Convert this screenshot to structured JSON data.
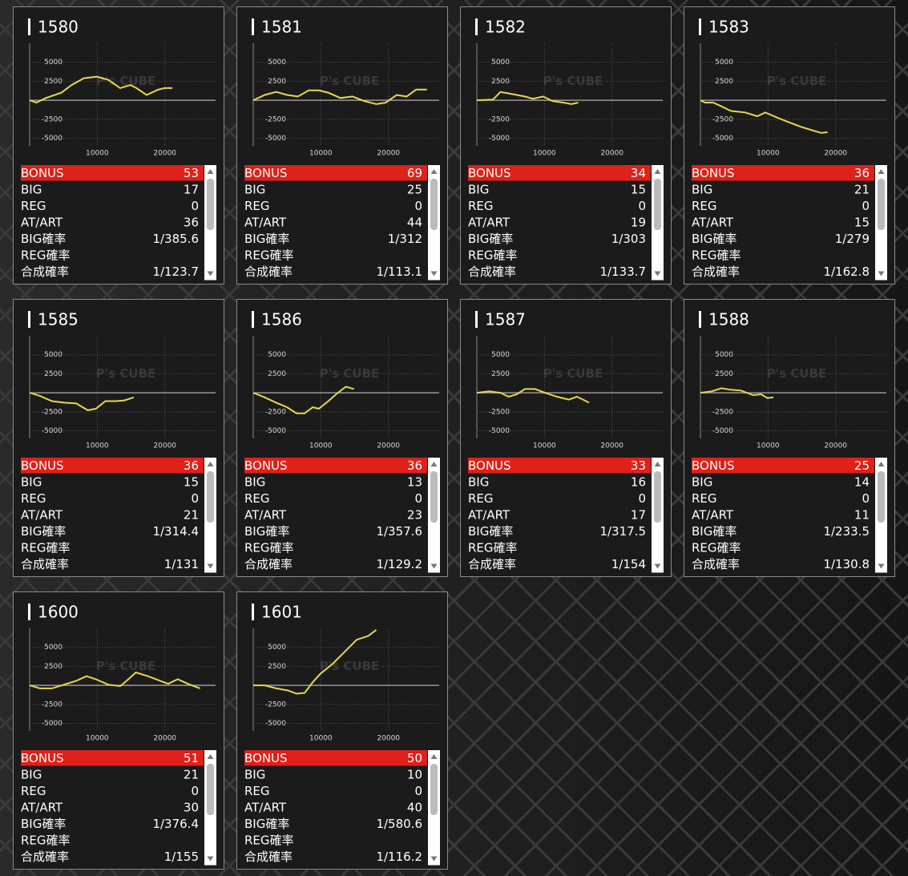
{
  "axes": {
    "xlim": [
      0,
      27500
    ],
    "ylim": [
      -6000,
      7500
    ],
    "xticks": [
      10000,
      20000
    ],
    "yticks": [
      5000,
      2500,
      -2500,
      -5000
    ],
    "grid": true,
    "line_color": "#e8d84a"
  },
  "watermark": "P's CUBE",
  "cards": [
    {
      "title": "1580",
      "chart": {
        "type": "line",
        "x": [
          0,
          1000,
          2400,
          4700,
          6200,
          8000,
          9900,
          11600,
          13400,
          14900,
          15800,
          17300,
          19000,
          20000,
          21100
        ],
        "values": [
          0,
          -300,
          300,
          1000,
          2000,
          2900,
          3100,
          2700,
          1600,
          2000,
          1600,
          700,
          1400,
          1600,
          1600
        ]
      },
      "rows": [
        {
          "label": "BONUS",
          "value": 53
        },
        {
          "label": "BIG",
          "value": 17
        },
        {
          "label": "REG",
          "value": 0
        },
        {
          "label": "AT/ART",
          "value": 36
        },
        {
          "label": "BIG確率",
          "value": "1/385.6"
        },
        {
          "label": "REG確率"
        },
        {
          "label": "合成確率",
          "value": "1/123.7"
        }
      ]
    },
    {
      "title": "1581",
      "chart": {
        "type": "line",
        "x": [
          0,
          1700,
          3400,
          5000,
          6600,
          8200,
          9700,
          11100,
          12900,
          14700,
          16400,
          18200,
          19600,
          21200,
          22700,
          24100,
          25700
        ],
        "values": [
          0,
          700,
          1100,
          700,
          500,
          1300,
          1300,
          1000,
          300,
          500,
          -100,
          -500,
          -300,
          700,
          500,
          1400,
          1400
        ]
      },
      "rows": [
        {
          "label": "BONUS",
          "value": 69
        },
        {
          "label": "BIG",
          "value": 25
        },
        {
          "label": "REG",
          "value": 0
        },
        {
          "label": "AT/ART",
          "value": 44
        },
        {
          "label": "BIG確率",
          "value": "1/312"
        },
        {
          "label": "REG確率"
        },
        {
          "label": "合成確率",
          "value": "1/113.1"
        }
      ]
    },
    {
      "title": "1582",
      "chart": {
        "type": "line",
        "x": [
          0,
          2400,
          3500,
          5300,
          7100,
          8300,
          9800,
          11200,
          12800,
          14000,
          15000
        ],
        "values": [
          0,
          100,
          1100,
          800,
          500,
          200,
          500,
          -100,
          -300,
          -500,
          -300
        ]
      },
      "rows": [
        {
          "label": "BONUS",
          "value": 34
        },
        {
          "label": "BIG",
          "value": 15
        },
        {
          "label": "REG",
          "value": 0
        },
        {
          "label": "AT/ART",
          "value": 19
        },
        {
          "label": "BIG確率",
          "value": "1/303"
        },
        {
          "label": "REG確率"
        },
        {
          "label": "合成確率",
          "value": "1/133.7"
        }
      ]
    },
    {
      "title": "1583",
      "chart": {
        "type": "line",
        "x": [
          0,
          700,
          1900,
          3100,
          4500,
          6600,
          8400,
          9600,
          11400,
          13100,
          14900,
          16700,
          17900,
          18800
        ],
        "values": [
          0,
          -300,
          -300,
          -800,
          -1400,
          -1600,
          -2100,
          -1600,
          -2300,
          -2900,
          -3500,
          -4000,
          -4300,
          -4200
        ]
      },
      "rows": [
        {
          "label": "BONUS",
          "value": 36
        },
        {
          "label": "BIG",
          "value": 21
        },
        {
          "label": "REG",
          "value": 0
        },
        {
          "label": "AT/ART",
          "value": 15
        },
        {
          "label": "BIG確率",
          "value": "1/279"
        },
        {
          "label": "REG確率"
        },
        {
          "label": "合成確率",
          "value": "1/162.8"
        }
      ]
    },
    {
      "title": "1585",
      "chart": {
        "type": "line",
        "x": [
          0,
          1500,
          3300,
          5100,
          6900,
          8600,
          9800,
          11200,
          12800,
          14000,
          15400
        ],
        "values": [
          0,
          -400,
          -1100,
          -1300,
          -1400,
          -2300,
          -2100,
          -1100,
          -1100,
          -1000,
          -600
        ]
      },
      "rows": [
        {
          "label": "BONUS",
          "value": 36
        },
        {
          "label": "BIG",
          "value": 15
        },
        {
          "label": "REG",
          "value": 0
        },
        {
          "label": "AT/ART",
          "value": 21
        },
        {
          "label": "BIG確率",
          "value": "1/314.4"
        },
        {
          "label": "REG確率"
        },
        {
          "label": "合成確率",
          "value": "1/131"
        }
      ]
    },
    {
      "title": "1586",
      "chart": {
        "type": "line",
        "x": [
          0,
          1700,
          3400,
          5000,
          6400,
          7600,
          8800,
          9700,
          11100,
          12500,
          13700,
          14900
        ],
        "values": [
          0,
          -600,
          -1300,
          -1900,
          -2700,
          -2700,
          -1900,
          -2100,
          -1100,
          0,
          800,
          500
        ]
      },
      "rows": [
        {
          "label": "BONUS",
          "value": 36
        },
        {
          "label": "BIG",
          "value": 13
        },
        {
          "label": "REG",
          "value": 0
        },
        {
          "label": "AT/ART",
          "value": 23
        },
        {
          "label": "BIG確率",
          "value": "1/357.6"
        },
        {
          "label": "REG確率"
        },
        {
          "label": "合成確率",
          "value": "1/129.2"
        }
      ]
    },
    {
      "title": "1587",
      "chart": {
        "type": "line",
        "x": [
          0,
          1800,
          3500,
          4700,
          5900,
          7100,
          8600,
          10100,
          11800,
          13600,
          14800,
          16600
        ],
        "values": [
          0,
          200,
          0,
          -500,
          -200,
          500,
          500,
          0,
          -500,
          -900,
          -500,
          -1300
        ]
      },
      "rows": [
        {
          "label": "BONUS",
          "value": 33
        },
        {
          "label": "BIG",
          "value": 16
        },
        {
          "label": "REG",
          "value": 0
        },
        {
          "label": "AT/ART",
          "value": 17
        },
        {
          "label": "BIG確率",
          "value": "1/317.5"
        },
        {
          "label": "REG確率"
        },
        {
          "label": "合成確率",
          "value": "1/154"
        }
      ]
    },
    {
      "title": "1588",
      "chart": {
        "type": "line",
        "x": [
          0,
          1700,
          3100,
          4500,
          6000,
          7800,
          9000,
          9900,
          10800
        ],
        "values": [
          0,
          200,
          600,
          400,
          300,
          -300,
          -200,
          -700,
          -600
        ]
      },
      "rows": [
        {
          "label": "BONUS",
          "value": 25
        },
        {
          "label": "BIG",
          "value": 14
        },
        {
          "label": "REG",
          "value": 0
        },
        {
          "label": "AT/ART",
          "value": 11
        },
        {
          "label": "BIG確率",
          "value": "1/233.5"
        },
        {
          "label": "REG確率"
        },
        {
          "label": "合成確率",
          "value": "1/130.8"
        }
      ]
    },
    {
      "title": "1600",
      "chart": {
        "type": "line",
        "x": [
          0,
          1500,
          3300,
          5100,
          6900,
          8400,
          9800,
          11600,
          13400,
          14600,
          15700,
          17500,
          19300,
          20500,
          21900,
          23400,
          25200
        ],
        "values": [
          0,
          -400,
          -400,
          100,
          600,
          1200,
          800,
          100,
          -100,
          800,
          1700,
          1200,
          600,
          200,
          800,
          200,
          -400
        ]
      },
      "rows": [
        {
          "label": "BONUS",
          "value": 51
        },
        {
          "label": "BIG",
          "value": 21
        },
        {
          "label": "REG",
          "value": 0
        },
        {
          "label": "AT/ART",
          "value": 30
        },
        {
          "label": "BIG確率",
          "value": "1/376.4"
        },
        {
          "label": "REG確率"
        },
        {
          "label": "合成確率",
          "value": "1/155"
        }
      ]
    },
    {
      "title": "1601",
      "chart": {
        "type": "line",
        "x": [
          0,
          1700,
          3400,
          5200,
          6400,
          7600,
          8800,
          9900,
          11700,
          13500,
          15300,
          17000,
          18200
        ],
        "values": [
          0,
          0,
          -400,
          -700,
          -1100,
          -1000,
          400,
          1500,
          2800,
          4400,
          6000,
          6500,
          7300
        ]
      },
      "rows": [
        {
          "label": "BONUS",
          "value": 50
        },
        {
          "label": "BIG",
          "value": 10
        },
        {
          "label": "REG",
          "value": 0
        },
        {
          "label": "AT/ART",
          "value": 40
        },
        {
          "label": "BIG確率",
          "value": "1/580.6"
        },
        {
          "label": "REG確率"
        },
        {
          "label": "合成確率",
          "value": "1/116.2"
        }
      ]
    }
  ]
}
